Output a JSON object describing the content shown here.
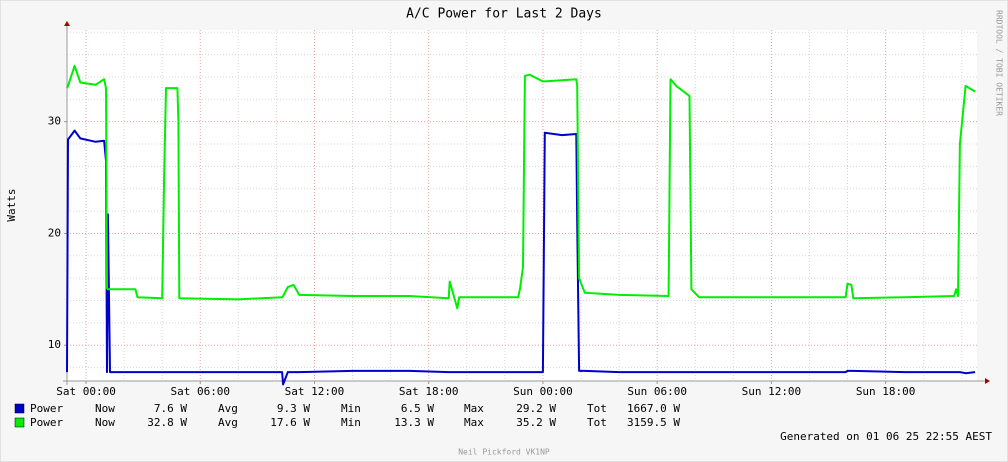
{
  "chart_data": {
    "type": "line",
    "title": "A/C Power for Last 2 Days",
    "y_label": "Watts",
    "watermark": "RRDTOOL / TOBI OETIKER",
    "footer": "Generated on 01 06 25 22:55 AEST",
    "credit": "Neil Pickford VK1NP",
    "x": [
      -1,
      -0.95,
      -0.6,
      -0.3,
      0.5,
      0.95,
      1.05,
      1.1,
      1.15,
      1.26,
      2.6,
      2.7,
      4.0,
      4.1,
      4.2,
      4.8,
      4.85,
      4.9,
      8,
      10.3,
      10.35,
      10.6,
      10.9,
      11.2,
      14,
      17,
      19.05,
      19.1,
      19.3,
      19.5,
      19.6,
      22.7,
      22.8,
      22.95,
      23.05,
      23.3,
      24.0,
      24.1,
      25.0,
      25.75,
      25.8,
      25.9,
      26.2,
      28,
      30.6,
      30.7,
      31.0,
      31.7,
      31.8,
      32.2,
      36,
      39.9,
      40.0,
      40.2,
      40.3,
      43,
      45.6,
      45.7,
      45.8,
      45.9,
      46.2,
      46.7
    ],
    "series": [
      {
        "name": "Power",
        "color": "#0000cc",
        "values": [
          7.6,
          28.4,
          29.2,
          28.5,
          28.2,
          28.3,
          26.5,
          7.6,
          21.7,
          7.6,
          7.6,
          7.6,
          7.6,
          7.6,
          7.6,
          7.6,
          7.6,
          7.6,
          7.6,
          7.6,
          6.5,
          7.6,
          7.6,
          7.6,
          7.7,
          7.7,
          7.6,
          7.6,
          7.6,
          7.6,
          7.6,
          7.6,
          7.6,
          7.6,
          7.6,
          7.6,
          7.6,
          29.0,
          28.8,
          28.9,
          21,
          7.7,
          7.7,
          7.6,
          7.6,
          7.6,
          7.6,
          7.6,
          7.6,
          7.6,
          7.6,
          7.6,
          7.7,
          7.7,
          7.7,
          7.6,
          7.6,
          7.6,
          7.6,
          7.6,
          7.5,
          7.6
        ]
      },
      {
        "name": "Power",
        "color": "#00ee00",
        "values": [
          33,
          33.2,
          35,
          33.5,
          33.3,
          33.8,
          33,
          15.1,
          15,
          15,
          15,
          14.3,
          14.2,
          25,
          33,
          33,
          30,
          14.2,
          14.1,
          14.3,
          14.4,
          15.2,
          15.4,
          14.5,
          14.4,
          14.4,
          14.2,
          15.7,
          14.5,
          13.3,
          14.3,
          14.3,
          15.1,
          17,
          34.1,
          34.2,
          33.6,
          33.6,
          33.7,
          33.8,
          33.2,
          16,
          14.7,
          14.5,
          14.4,
          33.8,
          33.2,
          32.3,
          15,
          14.3,
          14.3,
          14.3,
          15.5,
          15.4,
          14.2,
          14.3,
          14.4,
          15,
          14.4,
          28,
          33.2,
          32.7
        ]
      }
    ],
    "legend": {
      "labels": [
        "Now",
        "Avg",
        "Min",
        "Max",
        "Tot"
      ],
      "rows": [
        [
          "7.6 W",
          "9.3 W",
          "6.5 W",
          "29.2 W",
          "1667.0 W"
        ],
        [
          "32.8 W",
          "17.6 W",
          "13.3 W",
          "35.2 W",
          "3159.5 W"
        ]
      ]
    },
    "xlim": [
      -1,
      46.8
    ],
    "xticks": [
      {
        "value": 0,
        "label": "Sat 00:00"
      },
      {
        "value": 6,
        "label": "Sat 06:00"
      },
      {
        "value": 12,
        "label": "Sat 12:00"
      },
      {
        "value": 18,
        "label": "Sat 18:00"
      },
      {
        "value": 24,
        "label": "Sun 00:00"
      },
      {
        "value": 30,
        "label": "Sun 06:00"
      },
      {
        "value": 36,
        "label": "Sun 12:00"
      },
      {
        "value": 42,
        "label": "Sun 18:00"
      }
    ],
    "xminorticks": [
      2,
      4,
      8,
      10,
      14,
      16,
      20,
      22,
      26,
      28,
      32,
      34,
      38,
      40,
      44,
      46
    ],
    "ylim": [
      6.8,
      38.2
    ],
    "yticks": [
      10,
      20,
      30
    ],
    "yminorticks": [
      8,
      12,
      14,
      16,
      18,
      22,
      24,
      26,
      28,
      32,
      34,
      36,
      38
    ],
    "grid": true
  }
}
